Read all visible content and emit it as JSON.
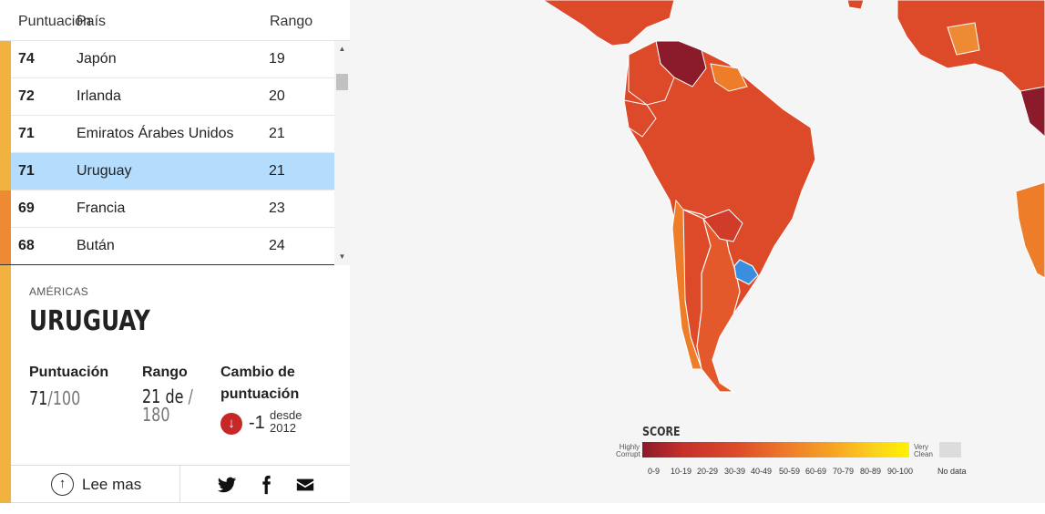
{
  "table": {
    "headers": {
      "score": "Puntuación",
      "country": "País",
      "rank": "Rango"
    },
    "rows": [
      {
        "score": "74",
        "country": "Japón",
        "rank": "19",
        "color": "#f2b240"
      },
      {
        "score": "72",
        "country": "Irlanda",
        "rank": "20",
        "color": "#f2b240"
      },
      {
        "score": "71",
        "country": "Emiratos Árabes Unidos",
        "rank": "21",
        "color": "#f2b240"
      },
      {
        "score": "71",
        "country": "Uruguay",
        "rank": "21",
        "color": "#f2b240",
        "selected": true
      },
      {
        "score": "69",
        "country": "Francia",
        "rank": "23",
        "color": "#ee8a33"
      },
      {
        "score": "68",
        "country": "Bután",
        "rank": "24",
        "color": "#ee8a33"
      }
    ]
  },
  "detail": {
    "region": "AMÉRICAS",
    "country": "URUGUAY",
    "score_label": "Puntuación",
    "score_value": "71",
    "score_max": "/100",
    "rank_label": "Rango",
    "rank_value": "21 de",
    "rank_sep": "/",
    "rank_total": "180",
    "change_label_1": "Cambio de",
    "change_label_2": "puntuación",
    "change_value": "-1",
    "change_since_1": "desde",
    "change_since_2": "2012",
    "accent": "#f2b240",
    "down_color": "#c62828"
  },
  "footer": {
    "read_more": "Lee mas",
    "share_icons": [
      "twitter-icon",
      "facebook-icon",
      "email-icon"
    ]
  },
  "legend": {
    "title": "SCORE",
    "low_label_1": "Highly",
    "low_label_2": "Corrupt",
    "high_label_1": "Very",
    "high_label_2": "Clean",
    "ranges": [
      "0-9",
      "10-19",
      "20-29",
      "30-39",
      "40-49",
      "50-59",
      "60-69",
      "70-79",
      "80-89",
      "90-100"
    ],
    "no_data": "No data",
    "highlight_color": "#3a8ee0"
  }
}
